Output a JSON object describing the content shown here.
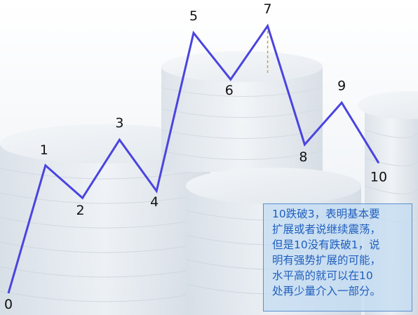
{
  "chart_data": {
    "type": "line",
    "title": "",
    "xlabel": "",
    "ylabel": "",
    "grid": false,
    "legend": "none",
    "line_color": "#4a44e0",
    "marker_color": "#c9a23c",
    "points": [
      {
        "label": "0",
        "x": 0,
        "y": 0
      },
      {
        "label": "1",
        "x": 1,
        "y": 5.5
      },
      {
        "label": "2",
        "x": 2,
        "y": 4.1
      },
      {
        "label": "3",
        "x": 3,
        "y": 6.6
      },
      {
        "label": "4",
        "x": 4,
        "y": 4.4
      },
      {
        "label": "5",
        "x": 5,
        "y": 11.2
      },
      {
        "label": "6",
        "x": 6,
        "y": 9.2
      },
      {
        "label": "7",
        "x": 7,
        "y": 11.5
      },
      {
        "label": "8",
        "x": 8,
        "y": 6.4
      },
      {
        "label": "9",
        "x": 9,
        "y": 8.2
      },
      {
        "label": "10",
        "x": 10,
        "y": 5.6
      }
    ],
    "annotation": {
      "lines": [
        "10跌破3，表明基本要",
        "扩展或者说继续震荡，",
        "但是10没有跌破1，说",
        "明有强势扩展的可能，",
        "水平高的就可以在10",
        "处再少量介入一部分。"
      ]
    }
  }
}
